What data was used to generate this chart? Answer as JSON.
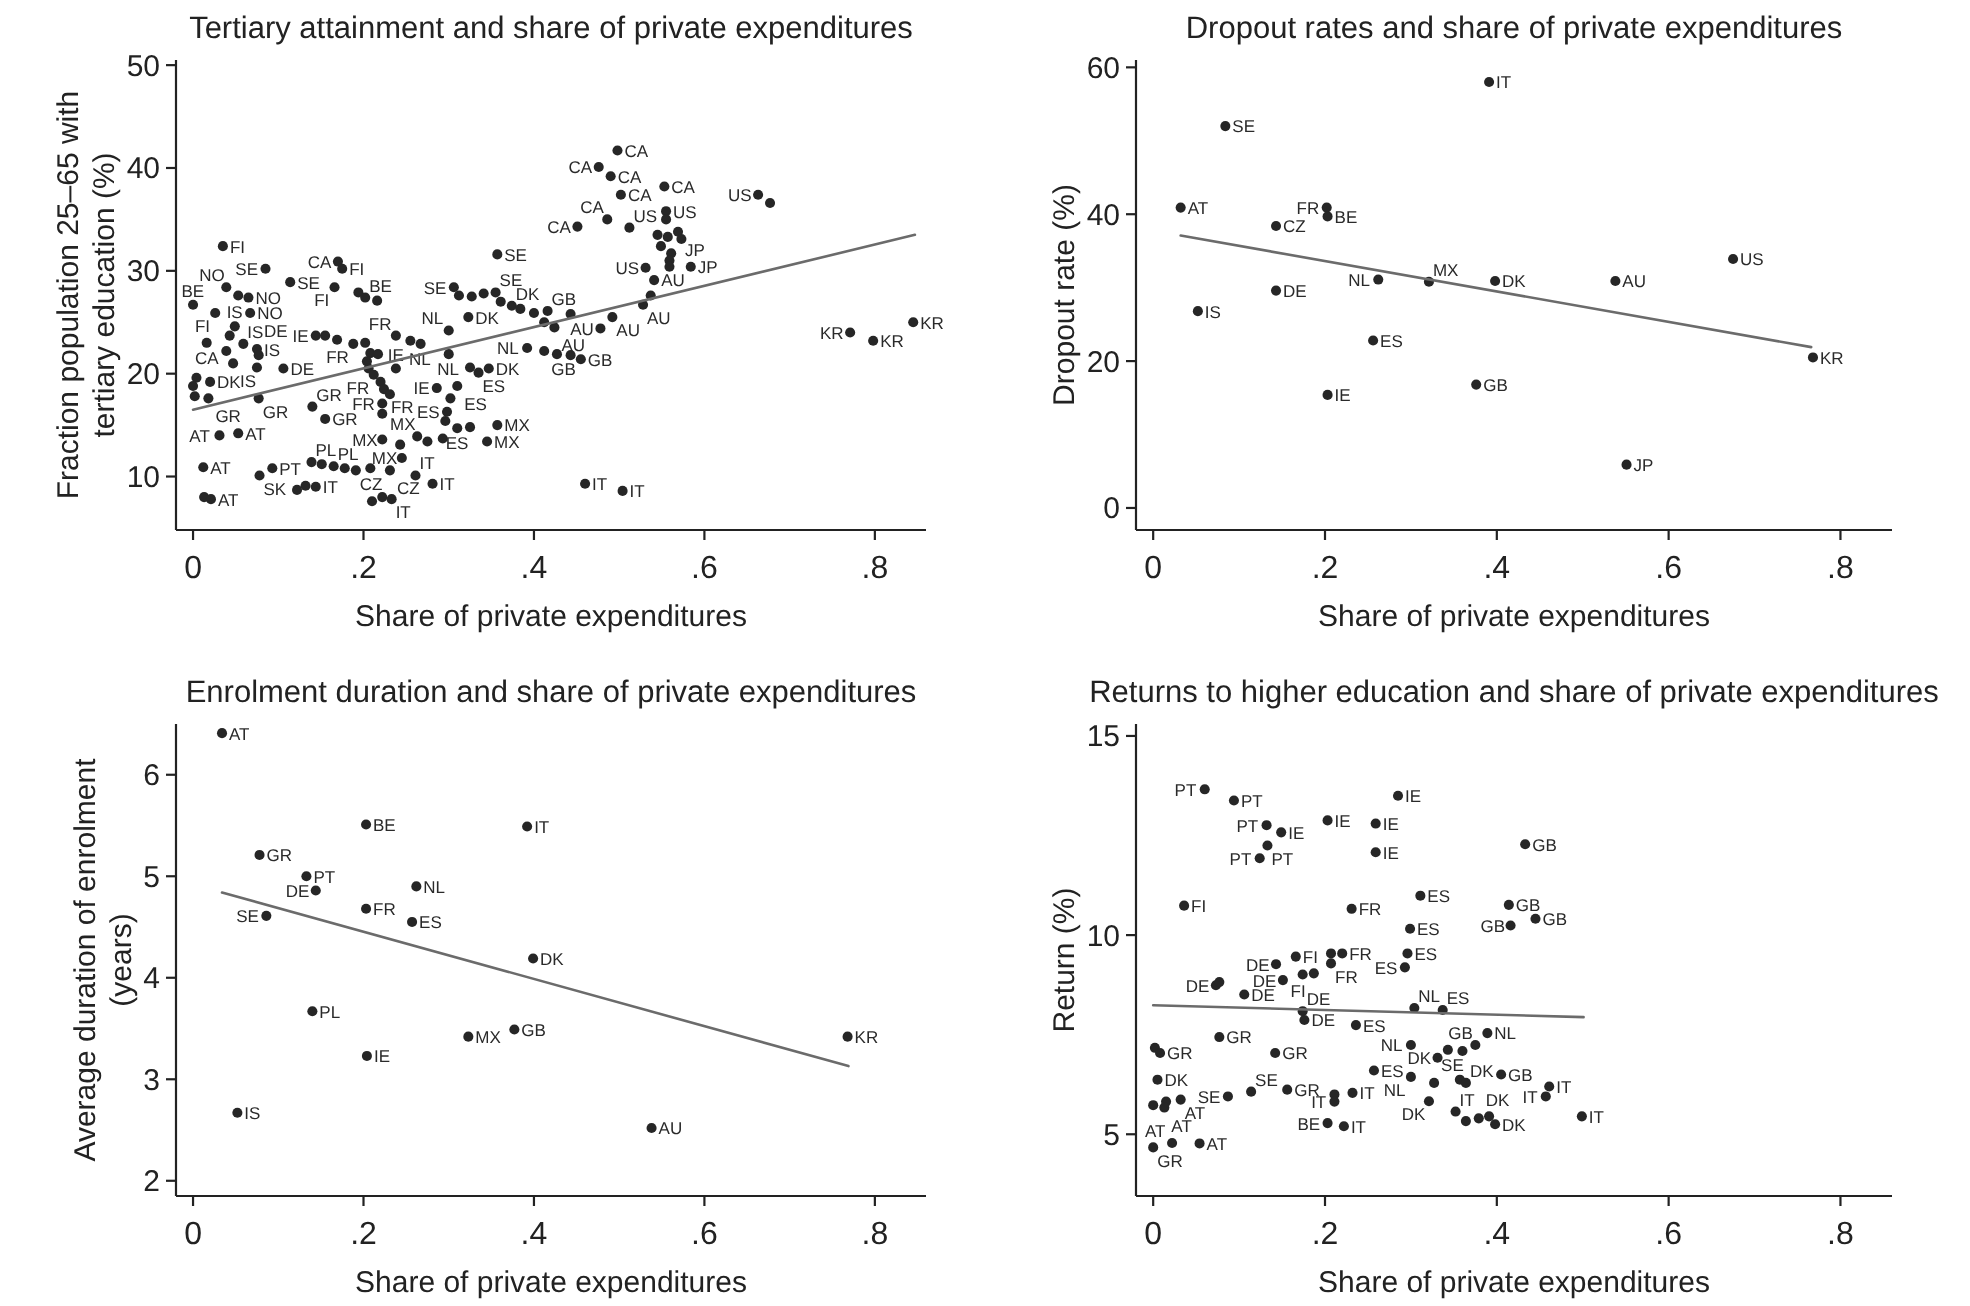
{
  "chart_data": [
    {
      "type": "scatter",
      "title": "Tertiary attainment and share of private expenditures",
      "xlabel": "Share of private expenditures",
      "ylabel": "Fraction population 25–65 with tertiary education (%)",
      "xlim": [
        -0.02,
        0.86
      ],
      "ylim": [
        4.8,
        50.5
      ],
      "xticks": [
        {
          "value": 0,
          "label": "0"
        },
        {
          "value": 0.2,
          "label": ".2"
        },
        {
          "value": 0.4,
          "label": ".4"
        },
        {
          "value": 0.6,
          "label": ".6"
        },
        {
          "value": 0.8,
          "label": ".8"
        }
      ],
      "yticks": [
        10,
        20,
        30,
        40,
        50
      ],
      "series": [
        {
          "marker": "circle",
          "color": "#262626",
          "x": [
            0.035,
            0.085,
            0.114,
            0.17,
            0.175,
            0.166,
            0.194,
            0.202,
            0.216,
            0.039,
            0.053,
            0.065,
            0.0,
            0.026,
            0.067,
            0.049,
            0.043,
            0.016,
            0.039,
            0.059,
            0.075,
            0.077,
            0.047,
            0.075,
            0.106,
            0.004,
            0.02,
            0.0,
            0.002,
            0.018,
            0.077,
            0.14,
            0.155,
            0.031,
            0.053,
            0.012,
            0.078,
            0.093,
            0.013,
            0.021,
            0.139,
            0.151,
            0.165,
            0.178,
            0.191,
            0.208,
            0.231,
            0.122,
            0.132,
            0.144,
            0.21,
            0.222,
            0.233,
            0.261,
            0.281,
            0.144,
            0.155,
            0.169,
            0.188,
            0.202,
            0.208,
            0.217,
            0.238,
            0.255,
            0.267,
            0.204,
            0.206,
            0.212,
            0.22,
            0.224,
            0.231,
            0.222,
            0.222,
            0.238,
            0.3,
            0.3,
            0.323,
            0.325,
            0.335,
            0.347,
            0.286,
            0.31,
            0.302,
            0.298,
            0.296,
            0.31,
            0.325,
            0.357,
            0.345,
            0.222,
            0.243,
            0.263,
            0.275,
            0.293,
            0.245,
            0.306,
            0.312,
            0.327,
            0.341,
            0.355,
            0.357,
            0.361,
            0.374,
            0.384,
            0.4,
            0.416,
            0.412,
            0.424,
            0.443,
            0.392,
            0.412,
            0.427,
            0.443,
            0.455,
            0.451,
            0.486,
            0.512,
            0.498,
            0.476,
            0.49,
            0.502,
            0.553,
            0.555,
            0.555,
            0.545,
            0.557,
            0.569,
            0.573,
            0.549,
            0.561,
            0.559,
            0.531,
            0.559,
            0.584,
            0.541,
            0.537,
            0.528,
            0.492,
            0.478,
            0.663,
            0.677,
            0.771,
            0.798,
            0.845,
            0.46,
            0.504
          ],
          "values": [
            32.4,
            30.2,
            28.9,
            30.9,
            30.2,
            28.4,
            27.9,
            27.4,
            27.1,
            28.4,
            27.6,
            27.4,
            26.7,
            25.9,
            25.9,
            24.6,
            23.7,
            23.0,
            22.2,
            22.9,
            22.4,
            21.8,
            21.0,
            20.6,
            20.5,
            19.6,
            19.2,
            18.8,
            17.8,
            17.6,
            17.6,
            16.8,
            15.6,
            14.0,
            14.2,
            10.9,
            10.1,
            10.8,
            8.0,
            7.8,
            11.4,
            11.2,
            11.0,
            10.8,
            10.6,
            10.8,
            10.6,
            8.7,
            9.1,
            9.0,
            7.6,
            8.0,
            7.8,
            10.1,
            9.3,
            23.7,
            23.7,
            23.3,
            22.9,
            23.0,
            22.0,
            21.9,
            23.7,
            23.2,
            22.9,
            21.2,
            20.5,
            19.9,
            19.2,
            18.5,
            18.0,
            17.1,
            16.1,
            20.5,
            24.2,
            21.9,
            25.5,
            20.6,
            20.1,
            20.5,
            18.6,
            18.8,
            17.6,
            16.3,
            15.4,
            14.7,
            14.8,
            15.0,
            13.4,
            13.6,
            13.1,
            13.9,
            13.4,
            13.7,
            11.8,
            28.4,
            27.6,
            27.5,
            27.8,
            27.9,
            31.6,
            27.0,
            26.6,
            26.3,
            25.9,
            26.1,
            25.0,
            24.5,
            25.8,
            22.5,
            22.2,
            21.9,
            21.8,
            21.4,
            34.3,
            35.0,
            34.2,
            41.7,
            40.1,
            39.2,
            37.4,
            38.2,
            35.8,
            35.0,
            33.5,
            33.3,
            33.8,
            33.1,
            32.4,
            31.7,
            31.0,
            30.3,
            30.4,
            30.4,
            29.1,
            27.6,
            26.7,
            25.5,
            24.4,
            37.4,
            36.6,
            24.0,
            23.2,
            25.0,
            9.3,
            8.6
          ],
          "value_labels": [
            "FI",
            "SE",
            "SE",
            "CA",
            "FI",
            "FI",
            null,
            "BE",
            null,
            "NO",
            null,
            "NO",
            "BE",
            "FI",
            "NO",
            "IS",
            null,
            "CA",
            null,
            "IS",
            "DE",
            null,
            "IS",
            "IS",
            "DE",
            null,
            "DK",
            null,
            null,
            "GR",
            "GR",
            "GR",
            "GR",
            "AT",
            "AT",
            "AT",
            "SK",
            "PT",
            null,
            "AT",
            "PL",
            null,
            "PL",
            null,
            "CZ",
            null,
            "CZ",
            null,
            null,
            "IT",
            null,
            null,
            "IT",
            "IT",
            "IT",
            "IE",
            null,
            null,
            "FR",
            null,
            null,
            null,
            "FR",
            null,
            "NL",
            null,
            null,
            "FR",
            null,
            "FR",
            null,
            "FR",
            null,
            "IE",
            "NL",
            "NL",
            "DK",
            null,
            "ES",
            "DK",
            "IE",
            "ES",
            null,
            "ES",
            null,
            "ES",
            null,
            "MX",
            "MX",
            "MX",
            null,
            "MX",
            null,
            null,
            "MX",
            "SE",
            null,
            null,
            null,
            "SE",
            "SE",
            null,
            "DK",
            null,
            null,
            "GB",
            null,
            "AU",
            null,
            "NL",
            "GB",
            null,
            null,
            "GB",
            "CA",
            "CA",
            "US",
            "CA",
            "CA",
            "CA",
            "CA",
            "CA",
            "US",
            null,
            null,
            null,
            "JP",
            null,
            null,
            null,
            null,
            "US",
            null,
            "JP",
            "AU",
            null,
            "AU",
            "AU",
            "AU",
            "US",
            null,
            "KR",
            "KR",
            "KR",
            "IT",
            "IT"
          ]
        },
        {
          "type": "line",
          "color": "#6b6b6b",
          "x": [
            0,
            0.847
          ],
          "values": [
            16.5,
            33.5
          ]
        }
      ]
    },
    {
      "type": "scatter",
      "title": "Dropout rates and share of private expenditures",
      "xlabel": "Share of private expenditures",
      "ylabel": "Dropout rate (%)",
      "xlim": [
        -0.02,
        0.86
      ],
      "ylim": [
        -3,
        61
      ],
      "xticks": [
        {
          "value": 0,
          "label": "0"
        },
        {
          "value": 0.2,
          "label": ".2"
        },
        {
          "value": 0.4,
          "label": ".4"
        },
        {
          "value": 0.6,
          "label": ".6"
        },
        {
          "value": 0.8,
          "label": ".8"
        }
      ],
      "yticks": [
        0,
        20,
        40,
        60
      ],
      "series": [
        {
          "marker": "circle",
          "color": "#262626",
          "x": [
            0.391,
            0.084,
            0.032,
            0.202,
            0.203,
            0.143,
            0.675,
            0.262,
            0.321,
            0.398,
            0.538,
            0.143,
            0.052,
            0.256,
            0.768,
            0.376,
            0.203,
            0.551
          ],
          "values": [
            58.0,
            52.0,
            40.9,
            40.9,
            39.7,
            38.4,
            33.9,
            31.1,
            30.8,
            30.9,
            30.9,
            29.6,
            26.8,
            22.8,
            20.5,
            16.8,
            15.4,
            5.9
          ],
          "value_labels": [
            "IT",
            "SE",
            "AT",
            "FR",
            "BE",
            "CZ",
            "US",
            "NL",
            "MX",
            "DK",
            "AU",
            "DE",
            "IS",
            "ES",
            "KR",
            "GB",
            "IE",
            "JP"
          ]
        },
        {
          "type": "line",
          "color": "#6b6b6b",
          "x": [
            0.032,
            0.766
          ],
          "values": [
            37.1,
            21.9
          ]
        }
      ]
    },
    {
      "type": "scatter",
      "title": "Enrolment duration and share of private expenditures",
      "xlabel": "Share of private expenditures",
      "ylabel": "Average duration of enrolment (years)",
      "xlim": [
        -0.02,
        0.86
      ],
      "ylim": [
        1.85,
        6.5
      ],
      "xticks": [
        {
          "value": 0,
          "label": "0"
        },
        {
          "value": 0.2,
          "label": ".2"
        },
        {
          "value": 0.4,
          "label": ".4"
        },
        {
          "value": 0.6,
          "label": ".6"
        },
        {
          "value": 0.8,
          "label": ".8"
        }
      ],
      "yticks": [
        2,
        3,
        4,
        5,
        6
      ],
      "series": [
        {
          "marker": "circle",
          "color": "#262626",
          "x": [
            0.034,
            0.203,
            0.392,
            0.078,
            0.133,
            0.144,
            0.262,
            0.203,
            0.086,
            0.257,
            0.399,
            0.14,
            0.377,
            0.323,
            0.768,
            0.204,
            0.052,
            0.538
          ],
          "values": [
            6.41,
            5.51,
            5.49,
            5.21,
            5.0,
            4.86,
            4.9,
            4.68,
            4.61,
            4.55,
            4.19,
            3.67,
            3.49,
            3.42,
            3.42,
            3.23,
            2.67,
            2.52
          ],
          "value_labels": [
            "AT",
            "BE",
            "IT",
            "GR",
            "PT",
            "DE",
            "NL",
            "FR",
            "SE",
            "ES",
            "DK",
            "PL",
            "GB",
            "MX",
            "KR",
            "IE",
            "IS",
            "AU"
          ]
        },
        {
          "type": "line",
          "color": "#6b6b6b",
          "x": [
            0.034,
            0.769
          ],
          "values": [
            4.84,
            3.13
          ]
        }
      ]
    },
    {
      "type": "scatter",
      "title": "Returns to higher education and share of private expenditures",
      "xlabel": "Share of private expenditures",
      "ylabel": "Return (%)",
      "xlim": [
        -0.02,
        0.86
      ],
      "ylim": [
        3.45,
        15.3
      ],
      "xticks": [
        {
          "value": 0,
          "label": "0"
        },
        {
          "value": 0.2,
          "label": ".2"
        },
        {
          "value": 0.4,
          "label": ".4"
        },
        {
          "value": 0.6,
          "label": ".6"
        },
        {
          "value": 0.8,
          "label": ".8"
        }
      ],
      "yticks": [
        5,
        10,
        15
      ],
      "series": [
        {
          "marker": "circle",
          "color": "#262626",
          "x": [
            0.06,
            0.094,
            0.285,
            0.132,
            0.149,
            0.203,
            0.259,
            0.133,
            0.124,
            0.259,
            0.036,
            0.311,
            0.231,
            0.299,
            0.296,
            0.293,
            0.166,
            0.143,
            0.207,
            0.22,
            0.207,
            0.151,
            0.174,
            0.187,
            0.073,
            0.077,
            0.106,
            0.174,
            0.176,
            0.236,
            0.304,
            0.337,
            0.077,
            0.002,
            0.008,
            0.142,
            0.3,
            0.343,
            0.331,
            0.36,
            0.375,
            0.389,
            0.005,
            0.257,
            0.3,
            0.327,
            0.357,
            0.364,
            0.405,
            0.087,
            0.114,
            0.156,
            0.032,
            0.015,
            0.0,
            0.013,
            0.211,
            0.211,
            0.232,
            0.321,
            0.352,
            0.364,
            0.379,
            0.391,
            0.398,
            0.203,
            0.222,
            0.022,
            0.054,
            0.0,
            0.433,
            0.414,
            0.445,
            0.416,
            0.461,
            0.457,
            0.499
          ],
          "values": [
            13.66,
            13.38,
            13.5,
            12.76,
            12.58,
            12.88,
            12.8,
            12.25,
            11.93,
            12.08,
            10.74,
            10.99,
            10.66,
            10.16,
            9.54,
            9.19,
            9.46,
            9.27,
            9.54,
            9.54,
            9.29,
            8.87,
            9.01,
            9.04,
            8.74,
            8.82,
            8.51,
            8.09,
            7.87,
            7.74,
            8.17,
            8.12,
            7.44,
            7.17,
            7.04,
            7.04,
            7.24,
            7.12,
            6.92,
            7.09,
            7.24,
            7.54,
            6.37,
            6.6,
            6.44,
            6.29,
            6.37,
            6.29,
            6.5,
            5.95,
            6.07,
            6.12,
            5.87,
            5.82,
            5.73,
            5.67,
            6.0,
            5.82,
            6.04,
            5.83,
            5.57,
            5.33,
            5.4,
            5.45,
            5.25,
            5.28,
            5.2,
            4.78,
            4.77,
            4.67,
            12.28,
            10.76,
            10.41,
            10.24,
            6.2,
            5.95,
            5.45
          ],
          "value_labels": [
            "PT",
            "PT",
            "IE",
            "PT",
            "IE",
            "IE",
            "IE",
            "PT",
            "PT",
            "IE",
            "FI",
            "ES",
            "FR",
            "ES",
            "ES",
            "ES",
            "FI",
            "DE",
            null,
            "FR",
            "FR",
            "DE",
            null,
            "FI",
            "DE",
            null,
            "DE",
            "DE",
            "DE",
            "ES",
            "NL",
            "ES",
            "GR",
            null,
            "GR",
            "GR",
            "NL",
            null,
            "DK",
            null,
            "GB",
            "NL",
            "DK",
            "ES",
            "NL",
            "SE",
            null,
            "DK",
            "GB",
            "SE",
            "SE",
            "GR",
            "AT",
            null,
            null,
            "AT",
            null,
            "IT",
            "IT",
            "DK",
            "IT",
            null,
            "DK",
            null,
            "DK",
            "BE",
            "IT",
            "AT",
            "AT",
            "GR",
            "GB",
            "GB",
            "GB",
            "GB",
            "IT",
            "IT",
            "IT"
          ]
        },
        {
          "type": "line",
          "color": "#6b6b6b",
          "x": [
            0,
            0.501
          ],
          "values": [
            8.24,
            7.94
          ]
        }
      ]
    }
  ]
}
